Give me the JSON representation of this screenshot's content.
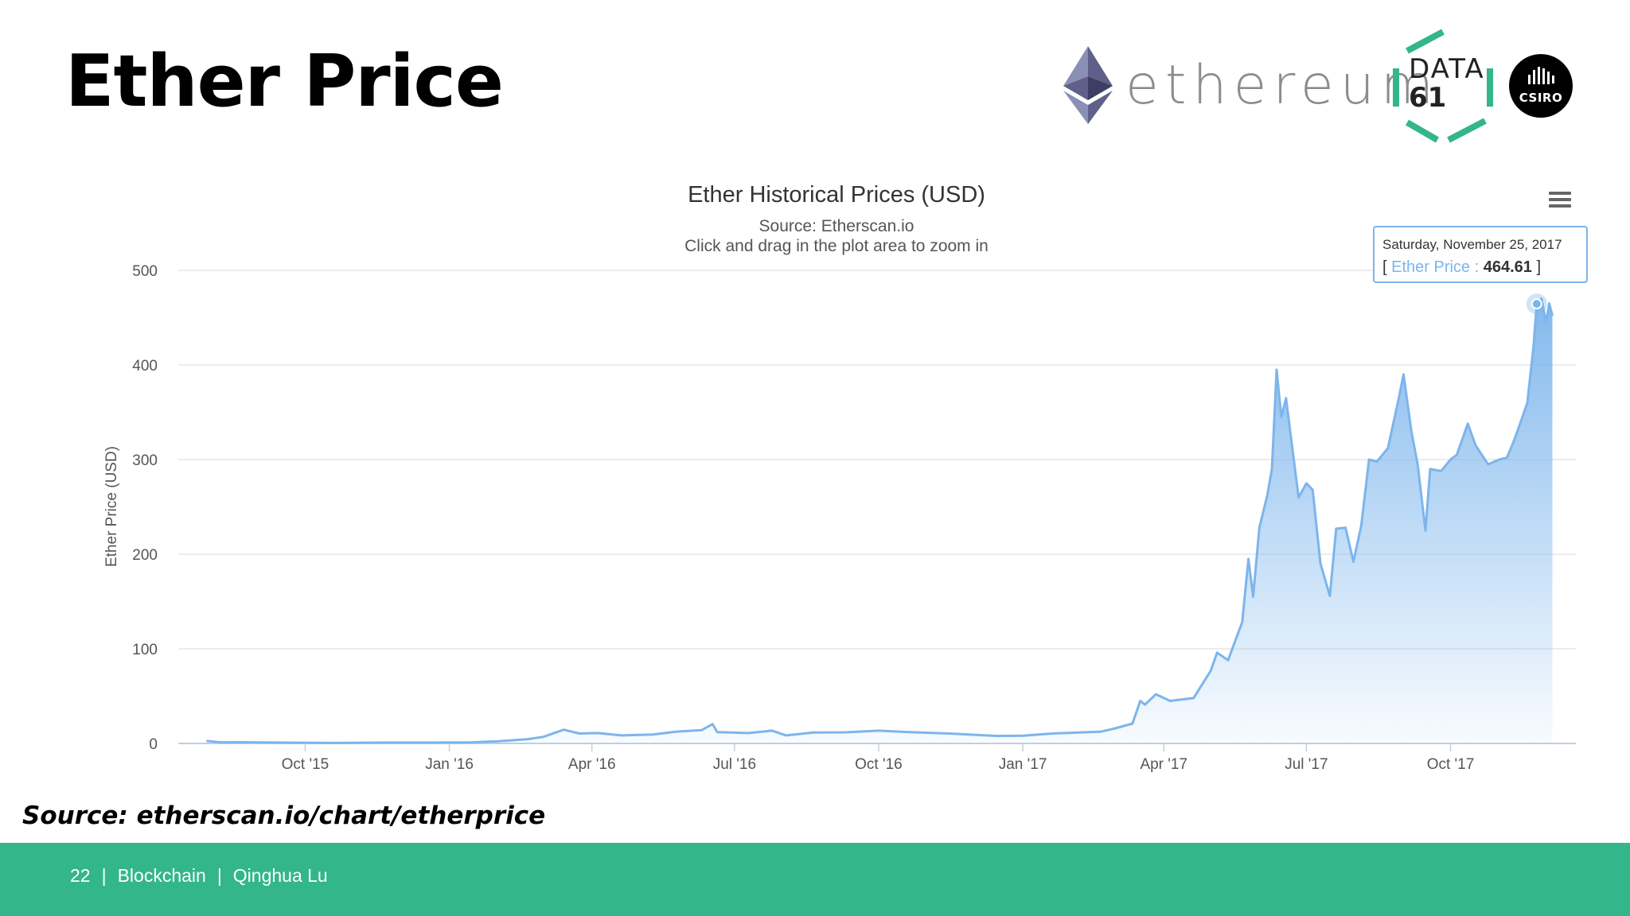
{
  "slide": {
    "title": "Ether Price",
    "source_note": "Source: etherscan.io/chart/etherprice",
    "brand_color": "#33b68a"
  },
  "logos": {
    "ethereum_word": "ethereum",
    "data61_line1": "DATA",
    "data61_line2": "61",
    "csiro": "CSIRO"
  },
  "footer": {
    "page_number": "22",
    "separator": "|",
    "course": "Blockchain",
    "author": "Qinghua Lu"
  },
  "chart_data": {
    "type": "area",
    "title": "Ether Historical Prices (USD)",
    "subtitle_source": "Source: Etherscan.io",
    "subtitle_hint": "Click and drag in the plot area to zoom in",
    "ylabel": "Ether Price (USD)",
    "ylim": [
      0,
      500
    ],
    "yticks": [
      0,
      100,
      200,
      300,
      400,
      500
    ],
    "xticks": [
      "Oct '15",
      "Jan '16",
      "Apr '16",
      "Jul '16",
      "Oct '16",
      "Jan '17",
      "Apr '17",
      "Jul '17",
      "Oct '17"
    ],
    "xtick_dates": [
      "2015-10-01",
      "2016-01-01",
      "2016-04-01",
      "2016-07-01",
      "2016-10-01",
      "2017-01-01",
      "2017-04-01",
      "2017-07-01",
      "2017-10-01"
    ],
    "series": [
      {
        "name": "Ether Price",
        "color": "#7cb5ec",
        "points": [
          [
            "2015-07-30",
            2.8
          ],
          [
            "2015-08-08",
            1.2
          ],
          [
            "2015-08-20",
            1.3
          ],
          [
            "2015-09-15",
            0.9
          ],
          [
            "2015-10-20",
            0.5
          ],
          [
            "2015-11-20",
            0.9
          ],
          [
            "2015-12-20",
            0.9
          ],
          [
            "2016-01-15",
            1.2
          ],
          [
            "2016-02-01",
            2.3
          ],
          [
            "2016-02-20",
            4.5
          ],
          [
            "2016-03-01",
            7.0
          ],
          [
            "2016-03-14",
            14.5
          ],
          [
            "2016-03-24",
            10.5
          ],
          [
            "2016-04-05",
            11.0
          ],
          [
            "2016-04-20",
            8.5
          ],
          [
            "2016-05-10",
            9.5
          ],
          [
            "2016-05-25",
            12.5
          ],
          [
            "2016-06-10",
            14.0
          ],
          [
            "2016-06-17",
            20.5
          ],
          [
            "2016-06-20",
            12.0
          ],
          [
            "2016-07-10",
            11.0
          ],
          [
            "2016-07-25",
            13.5
          ],
          [
            "2016-08-03",
            8.5
          ],
          [
            "2016-08-20",
            11.5
          ],
          [
            "2016-09-10",
            11.8
          ],
          [
            "2016-10-01",
            13.5
          ],
          [
            "2016-10-20",
            12.0
          ],
          [
            "2016-11-15",
            10.5
          ],
          [
            "2016-12-15",
            8.0
          ],
          [
            "2017-01-01",
            8.2
          ],
          [
            "2017-01-20",
            10.5
          ],
          [
            "2017-02-20",
            12.5
          ],
          [
            "2017-03-01",
            16.0
          ],
          [
            "2017-03-12",
            21.0
          ],
          [
            "2017-03-17",
            45.0
          ],
          [
            "2017-03-20",
            41.0
          ],
          [
            "2017-03-27",
            52.0
          ],
          [
            "2017-04-05",
            45.0
          ],
          [
            "2017-04-20",
            48.0
          ],
          [
            "2017-05-01",
            77.0
          ],
          [
            "2017-05-05",
            96.0
          ],
          [
            "2017-05-12",
            88.0
          ],
          [
            "2017-05-21",
            128.0
          ],
          [
            "2017-05-25",
            195.0
          ],
          [
            "2017-05-28",
            155.0
          ],
          [
            "2017-06-01",
            228.0
          ],
          [
            "2017-06-06",
            262.0
          ],
          [
            "2017-06-09",
            290.0
          ],
          [
            "2017-06-12",
            395.0
          ],
          [
            "2017-06-15",
            345.0
          ],
          [
            "2017-06-18",
            365.0
          ],
          [
            "2017-06-26",
            260.0
          ],
          [
            "2017-07-01",
            275.0
          ],
          [
            "2017-07-05",
            268.0
          ],
          [
            "2017-07-10",
            190.0
          ],
          [
            "2017-07-16",
            156.0
          ],
          [
            "2017-07-20",
            227.0
          ],
          [
            "2017-07-26",
            228.0
          ],
          [
            "2017-07-31",
            192.0
          ],
          [
            "2017-08-05",
            230.0
          ],
          [
            "2017-08-10",
            300.0
          ],
          [
            "2017-08-15",
            298.0
          ],
          [
            "2017-08-22",
            312.0
          ],
          [
            "2017-08-29",
            365.0
          ],
          [
            "2017-09-01",
            390.0
          ],
          [
            "2017-09-06",
            330.0
          ],
          [
            "2017-09-10",
            295.0
          ],
          [
            "2017-09-15",
            225.0
          ],
          [
            "2017-09-18",
            290.0
          ],
          [
            "2017-09-25",
            288.0
          ],
          [
            "2017-10-01",
            300.0
          ],
          [
            "2017-10-05",
            305.0
          ],
          [
            "2017-10-12",
            338.0
          ],
          [
            "2017-10-17",
            315.0
          ],
          [
            "2017-10-25",
            295.0
          ],
          [
            "2017-11-01",
            300.0
          ],
          [
            "2017-11-06",
            302.0
          ],
          [
            "2017-11-10",
            318.0
          ],
          [
            "2017-11-14",
            336.0
          ],
          [
            "2017-11-19",
            360.0
          ],
          [
            "2017-11-23",
            420.0
          ],
          [
            "2017-11-25",
            464.61
          ],
          [
            "2017-11-28",
            470.0
          ],
          [
            "2017-12-01",
            445.0
          ],
          [
            "2017-12-03",
            465.0
          ],
          [
            "2017-12-05",
            452.0
          ]
        ]
      }
    ],
    "tooltip": {
      "date": "Saturday, November 25, 2017",
      "open_bracket": "[",
      "series_label": "Ether Price",
      "colon": ":",
      "value": "464.61",
      "close_bracket": "]"
    },
    "grid": true,
    "menu_icon": "hamburger-menu-icon"
  }
}
